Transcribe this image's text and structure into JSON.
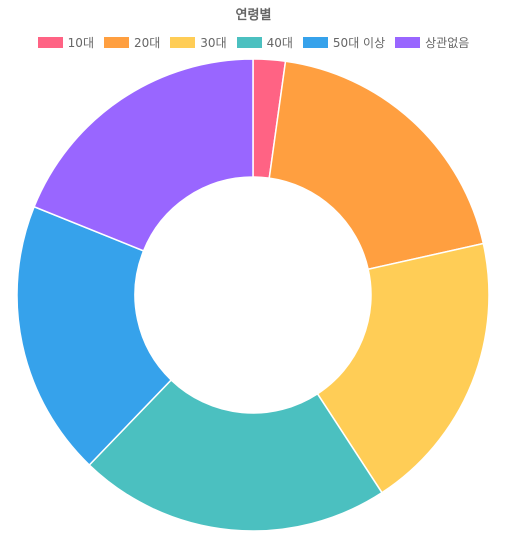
{
  "chart_data": {
    "type": "pie",
    "title": "연령별",
    "legend_position": "top",
    "categories": [
      "10대",
      "20대",
      "30대",
      "40대",
      "50대 이상",
      "상관없음"
    ],
    "values": [
      2.2,
      19.3,
      19.3,
      21.4,
      18.9,
      18.9
    ],
    "colors": [
      "#ff6384",
      "#ff9f40",
      "#ffcd56",
      "#4bc0c0",
      "#36a2eb",
      "#9966ff"
    ],
    "donut": true
  }
}
